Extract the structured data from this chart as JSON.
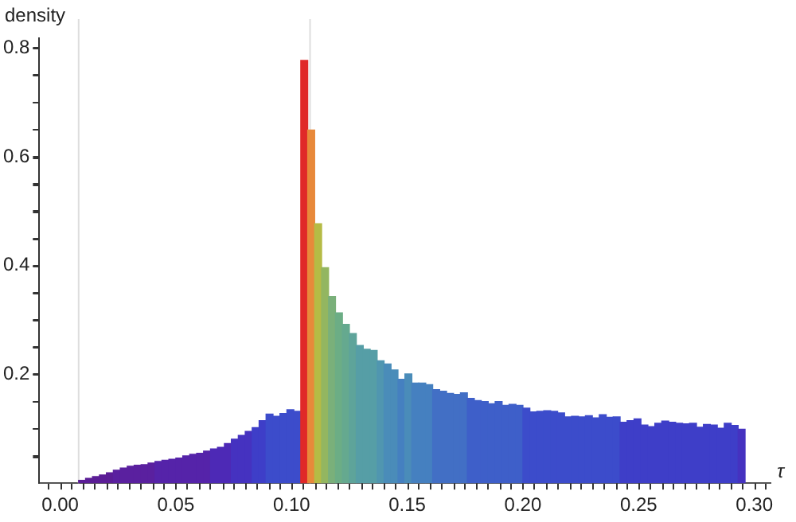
{
  "chart_data": {
    "type": "histogram",
    "xlabel": "τ",
    "ylabel": "density",
    "bins": [
      0.008,
      0.011,
      0.014,
      0.017,
      0.02,
      0.023,
      0.026,
      0.029,
      0.032,
      0.035,
      0.038,
      0.041,
      0.044,
      0.047,
      0.05,
      0.053,
      0.056,
      0.059,
      0.062,
      0.065,
      0.068,
      0.071,
      0.074,
      0.077,
      0.08,
      0.083,
      0.086,
      0.089,
      0.092,
      0.095,
      0.098,
      0.101,
      0.104,
      0.107,
      0.11,
      0.113,
      0.116,
      0.119,
      0.122,
      0.125,
      0.128,
      0.131,
      0.134,
      0.137,
      0.14,
      0.143,
      0.146,
      0.149,
      0.152,
      0.155,
      0.158,
      0.161,
      0.164,
      0.167,
      0.17,
      0.173,
      0.176,
      0.179,
      0.182,
      0.185,
      0.188,
      0.191,
      0.194,
      0.197,
      0.2,
      0.203,
      0.206,
      0.209,
      0.212,
      0.215,
      0.218,
      0.221,
      0.224,
      0.227,
      0.23,
      0.233,
      0.236,
      0.239,
      0.242,
      0.245,
      0.248,
      0.251,
      0.254,
      0.257,
      0.26,
      0.263,
      0.266,
      0.269,
      0.272,
      0.275,
      0.278,
      0.281,
      0.284,
      0.287,
      0.29,
      0.293,
      0.296
    ],
    "values": [
      0.005,
      0.009,
      0.012,
      0.015,
      0.019,
      0.024,
      0.028,
      0.031,
      0.033,
      0.034,
      0.037,
      0.04,
      0.042,
      0.044,
      0.046,
      0.05,
      0.053,
      0.055,
      0.059,
      0.063,
      0.066,
      0.073,
      0.081,
      0.088,
      0.095,
      0.102,
      0.115,
      0.127,
      0.123,
      0.128,
      0.135,
      0.132,
      0.777,
      0.649,
      0.477,
      0.396,
      0.343,
      0.313,
      0.292,
      0.275,
      0.253,
      0.246,
      0.244,
      0.225,
      0.219,
      0.208,
      0.191,
      0.201,
      0.184,
      0.184,
      0.181,
      0.172,
      0.169,
      0.165,
      0.163,
      0.166,
      0.156,
      0.152,
      0.15,
      0.146,
      0.15,
      0.143,
      0.145,
      0.143,
      0.138,
      0.131,
      0.132,
      0.133,
      0.132,
      0.129,
      0.122,
      0.123,
      0.122,
      0.124,
      0.12,
      0.126,
      0.121,
      0.122,
      0.112,
      0.115,
      0.118,
      0.107,
      0.104,
      0.11,
      0.114,
      0.112,
      0.11,
      0.109,
      0.11,
      0.103,
      0.108,
      0.107,
      0.101,
      0.11,
      0.106,
      0.099
    ],
    "colors": [
      "#5b1d96",
      "#5b1d96",
      "#5b1d96",
      "#5b1d96",
      "#5b1d96",
      "#5a209f",
      "#5a209f",
      "#5a209f",
      "#5a209f",
      "#5a209f",
      "#5a209f",
      "#5523a9",
      "#5523a9",
      "#5523a9",
      "#5523a9",
      "#5523a9",
      "#5523a9",
      "#5523a9",
      "#5523a9",
      "#4d29b6",
      "#4d29b6",
      "#4d29b6",
      "#4532c0",
      "#4532c0",
      "#4532c0",
      "#3e3ec8",
      "#3e3ec8",
      "#3c4ccb",
      "#3c4ccb",
      "#3c4ccb",
      "#3c4ccb",
      "#3c4ccb",
      "#e02828",
      "#e8893a",
      "#b5bb45",
      "#93b660",
      "#7ab07a",
      "#6cad85",
      "#65a98f",
      "#5ea49a",
      "#569ea6",
      "#569ea6",
      "#569ea6",
      "#5096b0",
      "#4a8cb9",
      "#4a8cb9",
      "#4580c0",
      "#4a8cb9",
      "#4580c0",
      "#4580c0",
      "#4580c0",
      "#426fc5",
      "#426fc5",
      "#426fc5",
      "#426fc5",
      "#426fc5",
      "#3e5fc9",
      "#3e5fc9",
      "#3e5fc9",
      "#3e5fc9",
      "#3e5fc9",
      "#3e5fc9",
      "#3e5fc9",
      "#3e5fc9",
      "#3c4ccb",
      "#3c4ccb",
      "#3c4ccb",
      "#3c4ccb",
      "#3c4ccb",
      "#3c4ccb",
      "#3c4ccb",
      "#3c4ccb",
      "#3c4ccb",
      "#3c4ccb",
      "#3c4ccb",
      "#3c4ccb",
      "#3c4ccb",
      "#3c4ccb",
      "#3e3ec8",
      "#3e3ec8",
      "#3e3ec8",
      "#3e3ec8",
      "#3e3ec8",
      "#3e3ec8",
      "#3e3ec8",
      "#3e3ec8",
      "#3e3ec8",
      "#3e3ec8",
      "#3e3ec8",
      "#3e3ec8",
      "#3e3ec8",
      "#3e3ec8",
      "#3e3ec8",
      "#3e3ec8",
      "#3e3ec8",
      "#4532c0"
    ],
    "xlim": [
      -0.009,
      0.307
    ],
    "ylim": [
      0,
      0.818
    ],
    "xticks": [
      {
        "value": 0,
        "label": "0.00"
      },
      {
        "value": 0.01,
        "label": null
      },
      {
        "value": 0.02,
        "label": null
      },
      {
        "value": 0.03,
        "label": null
      },
      {
        "value": 0.04,
        "label": null
      },
      {
        "value": 0.05,
        "label": "0.05"
      },
      {
        "value": 0.06,
        "label": null
      },
      {
        "value": 0.07,
        "label": null
      },
      {
        "value": 0.08,
        "label": null
      },
      {
        "value": 0.09,
        "label": null
      },
      {
        "value": 0.1,
        "label": "0.10"
      },
      {
        "value": 0.11,
        "label": null
      },
      {
        "value": 0.12,
        "label": null
      },
      {
        "value": 0.13,
        "label": null
      },
      {
        "value": 0.14,
        "label": null
      },
      {
        "value": 0.15,
        "label": "0.15"
      },
      {
        "value": 0.16,
        "label": null
      },
      {
        "value": 0.17,
        "label": null
      },
      {
        "value": 0.18,
        "label": null
      },
      {
        "value": 0.19,
        "label": null
      },
      {
        "value": 0.2,
        "label": "0.20"
      },
      {
        "value": 0.21,
        "label": null
      },
      {
        "value": 0.22,
        "label": null
      },
      {
        "value": 0.23,
        "label": null
      },
      {
        "value": 0.24,
        "label": null
      },
      {
        "value": 0.25,
        "label": "0.25"
      },
      {
        "value": 0.26,
        "label": null
      },
      {
        "value": 0.27,
        "label": null
      },
      {
        "value": 0.28,
        "label": null
      },
      {
        "value": 0.29,
        "label": null
      },
      {
        "value": 0.3,
        "label": "0.30"
      }
    ],
    "yticks": [
      {
        "value": 0.05,
        "label": null
      },
      {
        "value": 0.1,
        "label": null
      },
      {
        "value": 0.15,
        "label": null
      },
      0.2,
      {
        "value": 0.25,
        "label": null
      },
      {
        "value": 0.3,
        "label": null
      },
      {
        "value": 0.35,
        "label": null
      },
      0.4,
      {
        "value": 0.45,
        "label": null
      },
      {
        "value": 0.5,
        "label": null
      },
      {
        "value": 0.55,
        "label": null
      },
      0.6,
      {
        "value": 0.65,
        "label": null
      },
      {
        "value": 0.7,
        "label": null
      },
      {
        "value": 0.75,
        "label": null
      },
      0.8
    ],
    "ref_lines": [
      {
        "axis": "x",
        "value": 0.008,
        "color": "#dddddd"
      },
      {
        "axis": "x",
        "value": 0.108,
        "color": "#dddddd"
      }
    ],
    "grid": false,
    "legend": false
  }
}
